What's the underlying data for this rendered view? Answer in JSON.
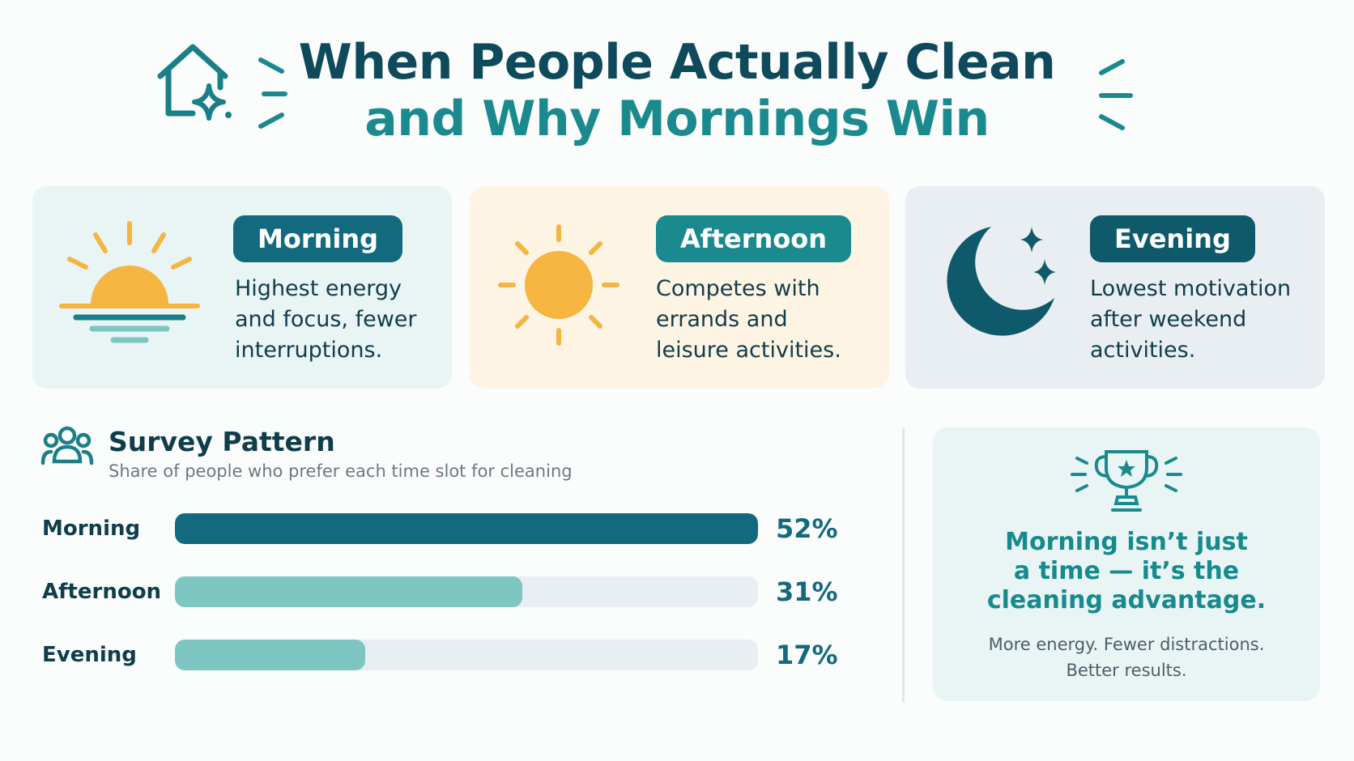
{
  "header": {
    "title_line1": "When People Actually Clean",
    "title_line2": "and Why Mornings Win"
  },
  "cards": [
    {
      "label": "Morning",
      "text": "Highest energy and focus, fewer interruptions.",
      "icon": "sunrise-icon"
    },
    {
      "label": "Afternoon",
      "text": "Competes with errands and leisure activities.",
      "icon": "sun-icon"
    },
    {
      "label": "Evening",
      "text": "Lowest motivation after weekend activities.",
      "icon": "moon-icon"
    }
  ],
  "survey": {
    "title": "Survey Pattern",
    "subtitle": "Share of people who prefer each time slot for cleaning"
  },
  "chart_data": {
    "type": "bar",
    "orientation": "horizontal",
    "title": "Survey Pattern",
    "subtitle": "Share of people who prefer each time slot for cleaning",
    "categories": [
      "Morning",
      "Afternoon",
      "Evening"
    ],
    "values": [
      52,
      31,
      17
    ],
    "value_labels": [
      "52%",
      "31%",
      "17%"
    ],
    "xlim": [
      0,
      52
    ],
    "grid": false,
    "colors": [
      "#136a7e",
      "#7ec6c2",
      "#7ec6c2"
    ]
  },
  "callout": {
    "headline_lines": [
      "Morning isn’t just",
      "a time — it’s the",
      "cleaning advantage."
    ],
    "body_lines": [
      "More energy. Fewer distractions.",
      "Better results."
    ],
    "icon": "trophy-icon"
  },
  "colors": {
    "dark_teal": "#0f4a5c",
    "teal": "#1a8a8e",
    "light_teal": "#7ec6c2",
    "sun": "#f5b540"
  }
}
